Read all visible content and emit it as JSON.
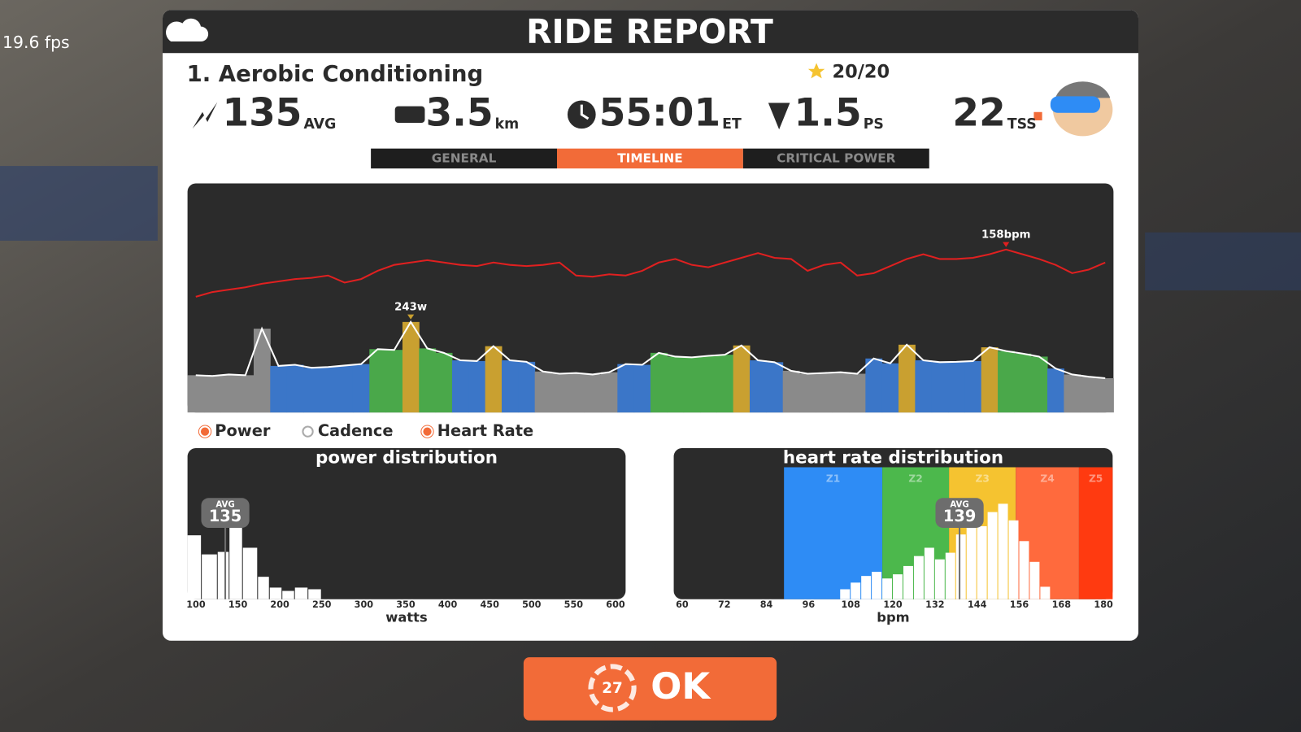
{
  "fps": "19.6 fps",
  "header": {
    "title": "RIDE REPORT"
  },
  "workout": {
    "name": "1. Aerobic Conditioning",
    "score": "20/20"
  },
  "stats": [
    {
      "value": "135",
      "unit": "AVG"
    },
    {
      "value": "3.5",
      "unit": "km"
    },
    {
      "value": "55:01",
      "unit": "ET"
    },
    {
      "value": "1.5",
      "unit": "PS"
    },
    {
      "value": "22",
      "unit": "TSS"
    }
  ],
  "tabs": [
    "GENERAL",
    "TIMELINE",
    "CRITICAL POWER"
  ],
  "active_tab": 1,
  "legend": [
    {
      "name": "Power",
      "checked": true,
      "color": "#f26b38"
    },
    {
      "name": "Cadence",
      "checked": false,
      "color": "#ffffff"
    },
    {
      "name": "Heart Rate",
      "checked": true,
      "color": "#f26b38"
    }
  ],
  "chart_data": [
    {
      "type": "timeline",
      "series": [
        {
          "name": "Power",
          "ylim": [
            0,
            615
          ],
          "peak_label": "243w",
          "color": "#ffffff",
          "values": [
            100,
            98,
            102,
            100,
            225,
            125,
            128,
            120,
            122,
            126,
            130,
            170,
            168,
            243,
            172,
            160,
            140,
            138,
            178,
            140,
            136,
            110,
            104,
            106,
            102,
            108,
            130,
            128,
            160,
            150,
            148,
            152,
            155,
            180,
            140,
            135,
            112,
            104,
            106,
            108,
            104,
            145,
            132,
            182,
            140,
            135,
            136,
            138,
            175,
            165,
            158,
            150,
            118,
            102,
            96,
            92
          ],
          "colors": [
            "#8a8a8a",
            "#8a8a8a",
            "#8a8a8a",
            "#8a8a8a",
            "#8a8a8a",
            "#3b76c8",
            "#3b76c8",
            "#3b76c8",
            "#3b76c8",
            "#3b76c8",
            "#3b76c8",
            "#4aa84a",
            "#4aa84a",
            "#c9a030",
            "#4aa84a",
            "#4aa84a",
            "#3b76c8",
            "#3b76c8",
            "#c9a030",
            "#3b76c8",
            "#3b76c8",
            "#8a8a8a",
            "#8a8a8a",
            "#8a8a8a",
            "#8a8a8a",
            "#8a8a8a",
            "#3b76c8",
            "#3b76c8",
            "#4aa84a",
            "#4aa84a",
            "#4aa84a",
            "#4aa84a",
            "#4aa84a",
            "#c9a030",
            "#3b76c8",
            "#3b76c8",
            "#8a8a8a",
            "#8a8a8a",
            "#8a8a8a",
            "#8a8a8a",
            "#8a8a8a",
            "#3b76c8",
            "#3b76c8",
            "#c9a030",
            "#3b76c8",
            "#3b76c8",
            "#3b76c8",
            "#3b76c8",
            "#c9a030",
            "#4aa84a",
            "#4aa84a",
            "#4aa84a",
            "#3b76c8",
            "#8a8a8a",
            "#8a8a8a",
            "#8a8a8a"
          ]
        },
        {
          "name": "Heart Rate",
          "ylim": [
            20,
            214
          ],
          "peak_label": "158bpm",
          "color": "#e02020",
          "values": [
            118,
            122,
            124,
            126,
            129,
            131,
            133,
            134,
            136,
            130,
            133,
            140,
            145,
            147,
            149,
            147,
            145,
            144,
            147,
            145,
            144,
            145,
            147,
            136,
            135,
            137,
            136,
            140,
            147,
            150,
            145,
            143,
            147,
            151,
            155,
            151,
            150,
            140,
            145,
            147,
            136,
            138,
            144,
            150,
            154,
            150,
            150,
            151,
            154,
            158,
            154,
            150,
            145,
            138,
            141,
            147
          ]
        }
      ]
    },
    {
      "type": "histogram",
      "title": "power distribution",
      "x_label": "watts",
      "color": "#ffffff",
      "bins": [
        90,
        107,
        126,
        140,
        156,
        174,
        188,
        203,
        218,
        234,
        250
      ],
      "counts": [
        77,
        54,
        57,
        117,
        62,
        27,
        14,
        10,
        14,
        12
      ],
      "xlim": [
        90,
        612
      ],
      "ylim": [
        0,
        182
      ],
      "xticks": [
        100,
        150,
        200,
        250,
        300,
        350,
        400,
        450,
        500,
        550,
        600
      ],
      "avg": {
        "label": "AVG",
        "value": 135
      }
    },
    {
      "type": "histogram",
      "title": "heart rate distribution",
      "x_label": "bpm",
      "color": "#ffffff",
      "bins": [
        105,
        108,
        111,
        114,
        117,
        120,
        123,
        126,
        129,
        132,
        135,
        138,
        141,
        144,
        147,
        150,
        153,
        156,
        159,
        162,
        165
      ],
      "counts": [
        12,
        20,
        28,
        33,
        25,
        30,
        40,
        52,
        62,
        48,
        56,
        78,
        95,
        88,
        105,
        115,
        95,
        70,
        45,
        15
      ],
      "xlim": [
        57.6,
        182.6
      ],
      "ylim": [
        0,
        182
      ],
      "xticks": [
        60,
        72,
        84,
        96,
        108,
        120,
        132,
        144,
        156,
        168,
        180
      ],
      "zones": [
        {
          "label": "Z1",
          "from": 89,
          "to": 117,
          "color": "#2e8cf5"
        },
        {
          "label": "Z2",
          "from": 117,
          "to": 136,
          "color": "#4cb84c"
        },
        {
          "label": "Z3",
          "from": 136,
          "to": 155,
          "color": "#f5c330"
        },
        {
          "label": "Z4",
          "from": 155,
          "to": 173,
          "color": "#ff6a3d"
        },
        {
          "label": "Z5",
          "from": 173,
          "to": 182.6,
          "color": "#ff3a10"
        }
      ],
      "avg": {
        "label": "AVG",
        "value": 139
      }
    }
  ],
  "ok": {
    "countdown": "27",
    "label": "OK"
  }
}
